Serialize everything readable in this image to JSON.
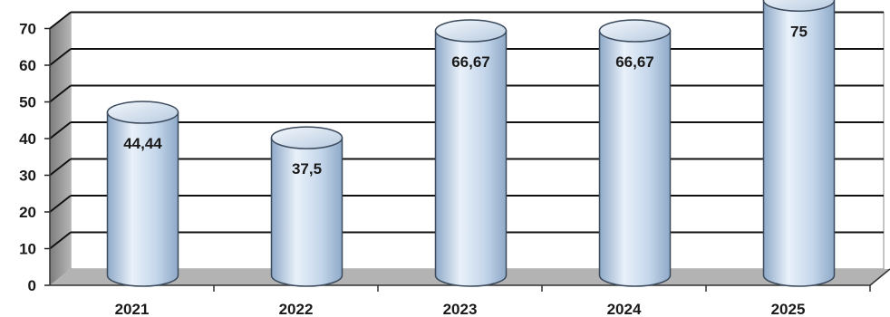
{
  "chart_data": {
    "type": "bar",
    "style": "3d-cylinder",
    "title": "",
    "xlabel": "",
    "ylabel": "",
    "categories": [
      "2021",
      "2022",
      "2023",
      "2024",
      "2025"
    ],
    "values": [
      44.44,
      37.5,
      66.67,
      66.67,
      75
    ],
    "data_labels": [
      "44,44",
      "37,5",
      "66,67",
      "66,67",
      "75"
    ],
    "ylim": [
      0,
      70
    ],
    "yticks": [
      "0",
      "10",
      "20",
      "30",
      "40",
      "50",
      "60",
      "70"
    ],
    "grid": true,
    "legend": "none",
    "colors": {
      "bar_light": "#e9f1fa",
      "bar_mid": "#c4d6ea",
      "bar_dark": "#8ea9c8",
      "bar_outline": "#3b4a5c",
      "wall": "#ffffff",
      "side_wall": "#9a9a9a",
      "floor": "#b3b3b3",
      "gridline": "#111111"
    }
  }
}
